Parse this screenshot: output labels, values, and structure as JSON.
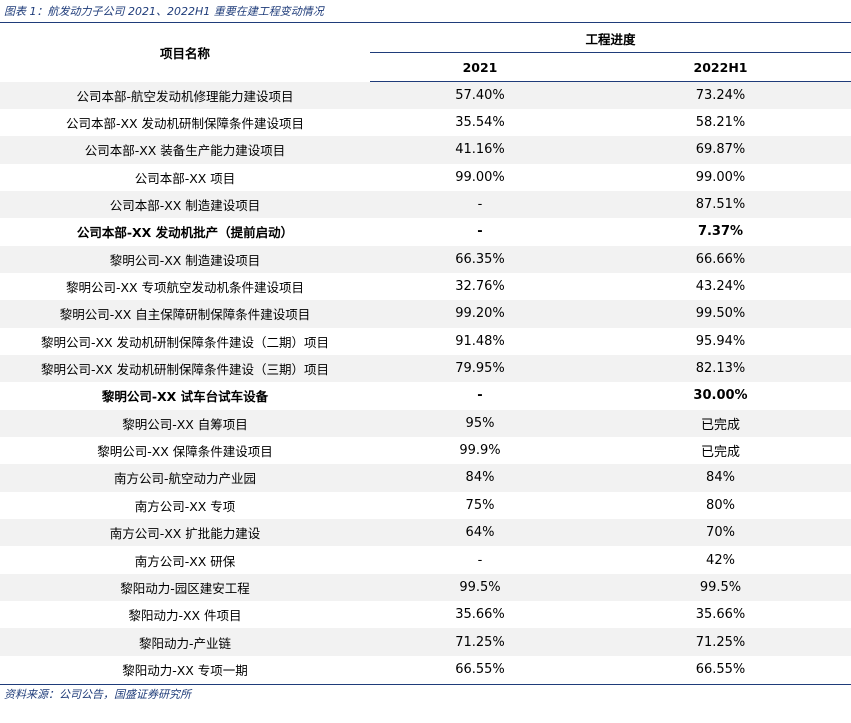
{
  "title": "图表 1：航发动力子公司 2021、2022H1 重要在建工程变动情况",
  "table": {
    "header": {
      "name": "项目名称",
      "group": "工程进度",
      "columns": [
        "2021",
        "2022H1"
      ]
    },
    "rows": [
      [
        "公司本部-航空发动机修理能力建设项目",
        "57.40%",
        "73.24%"
      ],
      [
        "公司本部-XX 发动机研制保障条件建设项目",
        "35.54%",
        "58.21%"
      ],
      [
        "公司本部-XX 装备生产能力建设项目",
        "41.16%",
        "69.87%"
      ],
      [
        "公司本部-XX 项目",
        "99.00%",
        "99.00%"
      ],
      [
        "公司本部-XX 制造建设项目",
        "-",
        "87.51%"
      ],
      [
        "公司本部-XX 发动机批产（提前启动）",
        "-",
        "7.37%"
      ],
      [
        "黎明公司-XX 制造建设项目",
        "66.35%",
        "66.66%"
      ],
      [
        "黎明公司-XX 专项航空发动机条件建设项目",
        "32.76%",
        "43.24%"
      ],
      [
        "黎明公司-XX 自主保障研制保障条件建设项目",
        "99.20%",
        "99.50%"
      ],
      [
        "黎明公司-XX 发动机研制保障条件建设（二期）项目",
        "91.48%",
        "95.94%"
      ],
      [
        "黎明公司-XX 发动机研制保障条件建设（三期）项目",
        "79.95%",
        "82.13%"
      ],
      [
        "黎明公司-XX 试车台试车设备",
        "-",
        "30.00%"
      ],
      [
        "黎明公司-XX 自筹项目",
        "95%",
        "已完成"
      ],
      [
        "黎明公司-XX 保障条件建设项目",
        "99.9%",
        "已完成"
      ],
      [
        "南方公司-航空动力产业园",
        "84%",
        "84%"
      ],
      [
        "南方公司-XX 专项",
        "75%",
        "80%"
      ],
      [
        "南方公司-XX 扩批能力建设",
        "64%",
        "70%"
      ],
      [
        "南方公司-XX 研保",
        "-",
        "42%"
      ],
      [
        "黎阳动力-园区建安工程",
        "99.5%",
        "99.5%"
      ],
      [
        "黎阳动力-XX 件项目",
        "35.66%",
        "35.66%"
      ],
      [
        "黎阳动力-产业链",
        "71.25%",
        "71.25%"
      ],
      [
        "黎阳动力-XX 专项一期",
        "66.55%",
        "66.55%"
      ]
    ]
  },
  "source": "资料来源：公司公告，国盛证券研究所"
}
